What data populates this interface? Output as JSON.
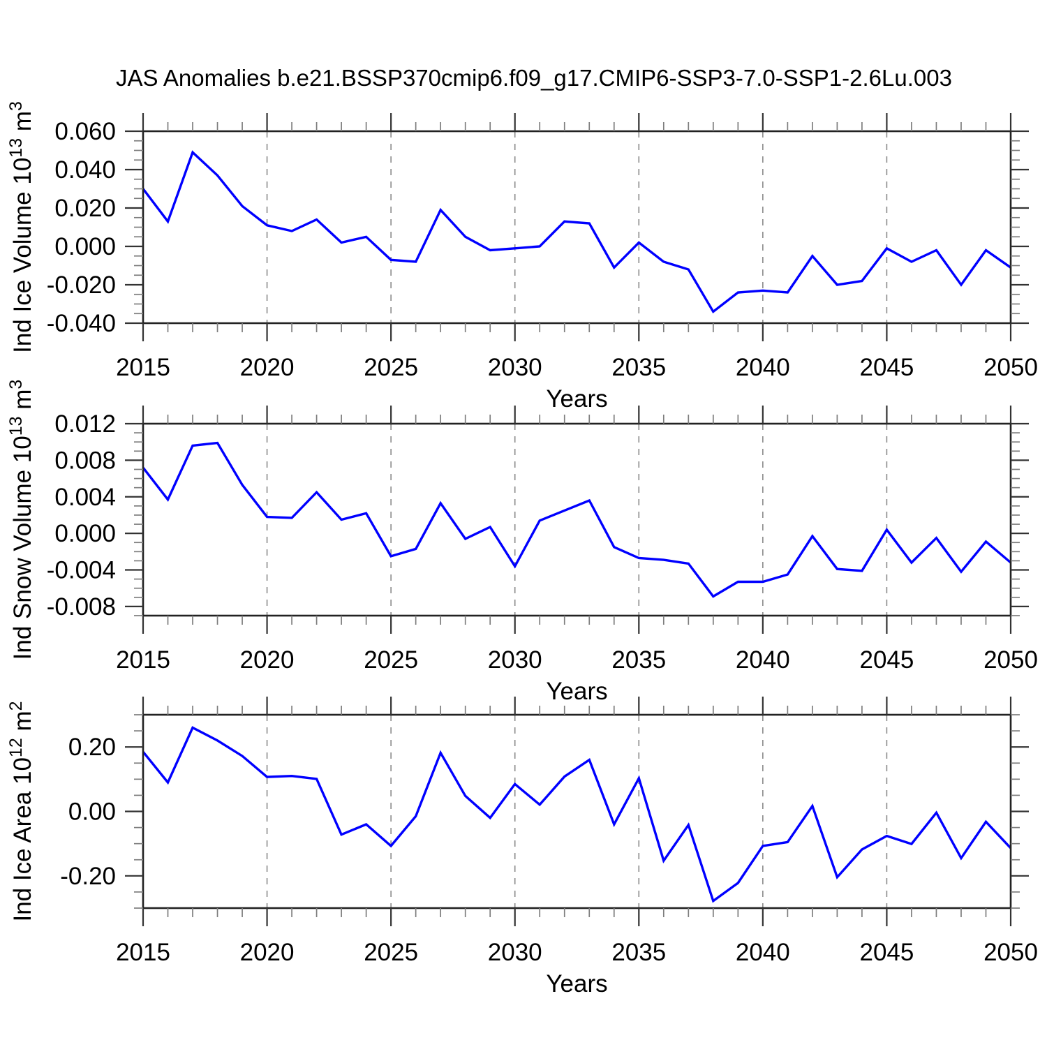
{
  "title": "JAS Anomalies b.e21.BSSP370cmip6.f09_g17.CMIP6-SSP3-7.0-SSP1-2.6Lu.003",
  "colors": {
    "series_line": "#0000ff",
    "gridline": "#8a8a8a",
    "spine": "#222222",
    "major_tick": "#333333",
    "minor_tick": "#7d7d7d",
    "text": "#000000"
  },
  "chart_data": [
    {
      "id": "ice-volume",
      "type": "line",
      "title": "",
      "xlabel": "Years",
      "ylabel": "Ind Ice Volume 10¹³ m³",
      "ylabel_segments": [
        {
          "t": "Ind Ice Volume 10"
        },
        {
          "t": "13",
          "sup": true
        },
        {
          "t": " m"
        },
        {
          "t": "3",
          "sup": true
        }
      ],
      "x": [
        2015,
        2016,
        2017,
        2018,
        2019,
        2020,
        2021,
        2022,
        2023,
        2024,
        2025,
        2026,
        2027,
        2028,
        2029,
        2030,
        2031,
        2032,
        2033,
        2034,
        2035,
        2036,
        2037,
        2038,
        2039,
        2040,
        2041,
        2042,
        2043,
        2044,
        2045,
        2046,
        2047,
        2048,
        2049,
        2050
      ],
      "values": [
        0.03,
        0.013,
        0.049,
        0.037,
        0.021,
        0.011,
        0.008,
        0.014,
        0.002,
        0.005,
        -0.007,
        -0.008,
        0.019,
        0.005,
        -0.002,
        -0.001,
        0.0,
        0.013,
        0.012,
        -0.011,
        0.002,
        -0.008,
        -0.012,
        -0.034,
        -0.024,
        -0.023,
        -0.024,
        -0.005,
        -0.02,
        -0.018,
        -0.001,
        -0.008,
        -0.002,
        -0.02,
        -0.002,
        -0.011
      ],
      "xlim": [
        2015,
        2050
      ],
      "ylim": [
        -0.04,
        0.06
      ],
      "ytick_values": [
        0.06,
        0.04,
        0.02,
        0.0,
        -0.02,
        -0.04
      ],
      "ytick_labels": [
        "0.060",
        "0.040",
        "0.020",
        "0.000",
        "-0.020",
        "-0.040"
      ],
      "ytick_minor_step": 0.005,
      "xtick_values": [
        2015,
        2020,
        2025,
        2030,
        2035,
        2040,
        2045,
        2050
      ],
      "xtick_labels": [
        "2015",
        "2020",
        "2025",
        "2030",
        "2035",
        "2040",
        "2045",
        "2050"
      ],
      "xtick_minor_step": 1,
      "grid_years": [
        2020,
        2025,
        2030,
        2035,
        2040,
        2045
      ],
      "grid_style": "vertical-dashed"
    },
    {
      "id": "snow-volume",
      "type": "line",
      "title": "",
      "xlabel": "Years",
      "ylabel": "Ind Snow Volume 10¹³ m³",
      "ylabel_segments": [
        {
          "t": "Ind Snow Volume 10"
        },
        {
          "t": "13",
          "sup": true
        },
        {
          "t": " m"
        },
        {
          "t": "3",
          "sup": true
        }
      ],
      "x": [
        2015,
        2016,
        2017,
        2018,
        2019,
        2020,
        2021,
        2022,
        2023,
        2024,
        2025,
        2026,
        2027,
        2028,
        2029,
        2030,
        2031,
        2032,
        2033,
        2034,
        2035,
        2036,
        2037,
        2038,
        2039,
        2040,
        2041,
        2042,
        2043,
        2044,
        2045,
        2046,
        2047,
        2048,
        2049,
        2050
      ],
      "values": [
        0.0072,
        0.0037,
        0.0096,
        0.0099,
        0.0053,
        0.0018,
        0.0017,
        0.0045,
        0.0015,
        0.0022,
        -0.0025,
        -0.0017,
        0.0033,
        -0.0006,
        0.0007,
        -0.0036,
        0.0014,
        0.0025,
        0.0036,
        -0.0015,
        -0.0027,
        -0.0029,
        -0.0033,
        -0.0069,
        -0.0053,
        -0.0053,
        -0.0045,
        -0.0003,
        -0.0039,
        -0.0041,
        0.0004,
        -0.0032,
        -0.0005,
        -0.0042,
        -0.0009,
        -0.0032
      ],
      "xlim": [
        2015,
        2050
      ],
      "ylim": [
        -0.009,
        0.012
      ],
      "ytick_values": [
        0.012,
        0.008,
        0.004,
        0.0,
        -0.004,
        -0.008
      ],
      "ytick_labels": [
        "0.012",
        "0.008",
        "0.004",
        "0.000",
        "-0.004",
        "-0.008"
      ],
      "ytick_minor_step": 0.001,
      "xtick_values": [
        2015,
        2020,
        2025,
        2030,
        2035,
        2040,
        2045,
        2050
      ],
      "xtick_labels": [
        "2015",
        "2020",
        "2025",
        "2030",
        "2035",
        "2040",
        "2045",
        "2050"
      ],
      "xtick_minor_step": 1,
      "grid_years": [
        2020,
        2025,
        2030,
        2035,
        2040,
        2045
      ],
      "grid_style": "vertical-dashed"
    },
    {
      "id": "ice-area",
      "type": "line",
      "title": "",
      "xlabel": "Years",
      "ylabel": "Ind Ice Area 10¹² m²",
      "ylabel_segments": [
        {
          "t": "Ind Ice Area 10"
        },
        {
          "t": "12",
          "sup": true
        },
        {
          "t": " m"
        },
        {
          "t": "2",
          "sup": true
        }
      ],
      "x": [
        2015,
        2016,
        2017,
        2018,
        2019,
        2020,
        2021,
        2022,
        2023,
        2024,
        2025,
        2026,
        2027,
        2028,
        2029,
        2030,
        2031,
        2032,
        2033,
        2034,
        2035,
        2036,
        2037,
        2038,
        2039,
        2040,
        2041,
        2042,
        2043,
        2044,
        2045,
        2046,
        2047,
        2048,
        2049,
        2050
      ],
      "values": [
        0.185,
        0.09,
        0.26,
        0.22,
        0.172,
        0.107,
        0.11,
        0.101,
        -0.072,
        -0.04,
        -0.107,
        -0.015,
        0.182,
        0.048,
        -0.02,
        0.085,
        0.021,
        0.108,
        0.16,
        -0.04,
        0.103,
        -0.153,
        -0.042,
        -0.278,
        -0.222,
        -0.107,
        -0.095,
        0.017,
        -0.204,
        -0.118,
        -0.076,
        -0.101,
        -0.004,
        -0.145,
        -0.032,
        -0.114
      ],
      "xlim": [
        2015,
        2050
      ],
      "ylim": [
        -0.3,
        0.3
      ],
      "ytick_values": [
        0.2,
        0.0,
        -0.2
      ],
      "ytick_labels": [
        "0.20",
        "0.00",
        "-0.20"
      ],
      "ytick_minor_step": 0.05,
      "xtick_values": [
        2015,
        2020,
        2025,
        2030,
        2035,
        2040,
        2045,
        2050
      ],
      "xtick_labels": [
        "2015",
        "2020",
        "2025",
        "2030",
        "2035",
        "2040",
        "2045",
        "2050"
      ],
      "xtick_minor_step": 1,
      "grid_years": [
        2020,
        2025,
        2030,
        2035,
        2040,
        2045
      ],
      "grid_style": "vertical-dashed"
    }
  ]
}
